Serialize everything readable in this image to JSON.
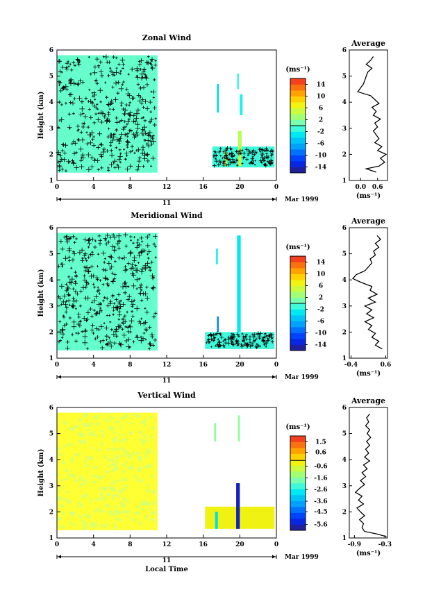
{
  "panels": [
    {
      "title": "Zonal Wind",
      "ylabel": "Height (km)",
      "y_ticks": [
        "1",
        "2",
        "3",
        "4",
        "5",
        "6"
      ],
      "x_ticks": [
        "0",
        "4",
        "8",
        "12",
        "16",
        "20",
        "0"
      ],
      "day_label": "11",
      "month_label": "Mar 1999",
      "colorbar": {
        "unit": "(ms⁻¹)",
        "ticks": [
          "14",
          "10",
          "6",
          "2",
          "-2",
          "-6",
          "-10",
          "-14"
        ],
        "range": [
          -16,
          16
        ]
      },
      "background_color": "#66ffcc",
      "average": {
        "title": "Average",
        "ylabel": "",
        "x_ticks": [
          "0.0",
          "0.6"
        ],
        "xlim": [
          -0.4,
          0.95
        ],
        "xlabel": "(ms⁻¹)",
        "heights": [
          1.32,
          1.45,
          1.55,
          1.7,
          1.85,
          2.0,
          2.15,
          2.3,
          2.45,
          2.6,
          2.75,
          2.9,
          3.05,
          3.2,
          3.35,
          3.5,
          3.65,
          3.8,
          3.95,
          4.1,
          4.25,
          4.4,
          4.55,
          4.7,
          4.85,
          5.0,
          5.15,
          5.3,
          5.45,
          5.6,
          5.75
        ],
        "values": [
          0.55,
          0.2,
          0.65,
          0.85,
          0.7,
          0.9,
          0.6,
          0.75,
          0.5,
          0.65,
          0.55,
          0.45,
          0.6,
          0.5,
          0.7,
          0.45,
          0.55,
          0.4,
          0.65,
          0.5,
          0.35,
          -0.1,
          0.0,
          0.1,
          0.15,
          0.2,
          0.25,
          0.4,
          0.2,
          0.35,
          0.45
        ]
      }
    },
    {
      "title": "Meridional Wind",
      "ylabel": "Height (km)",
      "y_ticks": [
        "1",
        "2",
        "3",
        "4",
        "5",
        "6"
      ],
      "x_ticks": [
        "0",
        "4",
        "8",
        "12",
        "16",
        "20",
        "0"
      ],
      "day_label": "11",
      "month_label": "Mar 1999",
      "colorbar": {
        "unit": "(ms⁻¹)",
        "ticks": [
          "14",
          "10",
          "6",
          "2",
          "-2",
          "-6",
          "-10",
          "-14"
        ],
        "range": [
          -16,
          16
        ]
      },
      "background_color": "#66ffcc",
      "average": {
        "title": "Average",
        "ylabel": "",
        "x_ticks": [
          "-0.4",
          "0.6"
        ],
        "xlim": [
          -0.45,
          0.65
        ],
        "xlabel": "(ms⁻¹)",
        "heights": [
          1.35,
          1.5,
          1.65,
          1.8,
          1.95,
          2.1,
          2.25,
          2.4,
          2.55,
          2.7,
          2.85,
          3.0,
          3.15,
          3.3,
          3.45,
          3.6,
          3.75,
          3.9,
          4.05,
          4.2,
          4.35,
          4.5,
          4.65,
          4.8,
          4.95,
          5.1,
          5.25,
          5.4,
          5.55,
          5.7
        ],
        "values": [
          0.5,
          0.3,
          0.4,
          0.2,
          0.3,
          0.1,
          0.2,
          0.0,
          0.25,
          0.05,
          0.2,
          0.0,
          0.3,
          0.1,
          0.35,
          0.15,
          0.2,
          -0.1,
          -0.35,
          -0.25,
          0.0,
          0.1,
          0.2,
          0.15,
          0.3,
          0.25,
          0.4,
          0.3,
          0.45,
          0.35
        ]
      }
    },
    {
      "title": "Vertical Wind",
      "ylabel": "Height (km)",
      "y_ticks": [
        "1",
        "2",
        "3",
        "4",
        "5",
        "6"
      ],
      "x_ticks": [
        "0",
        "4",
        "8",
        "12",
        "16",
        "20",
        "0"
      ],
      "day_label": "11",
      "month_label": "Mar 1999",
      "colorbar": {
        "unit": "(ms⁻¹)",
        "ticks": [
          "1.5",
          "0.6",
          "-0.6",
          "-1.6",
          "-2.6",
          "-3.6",
          "-4.5",
          "-5.6"
        ],
        "range": [
          -6.1,
          2.0
        ]
      },
      "background_color": "#ffff33",
      "average": {
        "title": "Average",
        "ylabel": "",
        "x_ticks": [
          "-0.9",
          "-0.3"
        ],
        "xlim": [
          -1.0,
          -0.25
        ],
        "xlabel": "(ms⁻¹)",
        "heights": [
          1.05,
          1.15,
          1.25,
          1.4,
          1.55,
          1.7,
          1.85,
          2.0,
          2.15,
          2.3,
          2.45,
          2.6,
          2.75,
          2.9,
          3.05,
          3.2,
          3.35,
          3.5,
          3.65,
          3.8,
          3.95,
          4.1,
          4.25,
          4.4,
          4.55,
          4.7,
          4.85,
          5.0,
          5.15,
          5.3,
          5.45,
          5.6,
          5.75
        ],
        "values": [
          -0.27,
          -0.45,
          -0.7,
          -0.75,
          -0.72,
          -0.8,
          -0.7,
          -0.78,
          -0.85,
          -0.72,
          -0.82,
          -0.75,
          -0.88,
          -0.8,
          -0.7,
          -0.78,
          -0.68,
          -0.75,
          -0.65,
          -0.72,
          -0.6,
          -0.7,
          -0.62,
          -0.68,
          -0.6,
          -0.66,
          -0.58,
          -0.65,
          -0.6,
          -0.68,
          -0.62,
          -0.66,
          -0.6
        ]
      }
    }
  ],
  "xlabel": "Local Time",
  "chart_data": [
    {
      "type": "heatmap",
      "title": "Zonal Wind",
      "xlabel": "",
      "ylabel": "Height (km)",
      "x_unit": "local time (h), 11 Mar 1999",
      "xlim": [
        0,
        24
      ],
      "ylim": [
        1,
        6
      ],
      "colorbar_unit": "(ms⁻¹)",
      "colorbar_range": [
        -16,
        16
      ],
      "blocks": [
        {
          "x": [
            0,
            11
          ],
          "y": [
            1.3,
            5.8
          ],
          "value": -1
        },
        {
          "x": [
            17,
            23.8
          ],
          "y": [
            1.5,
            2.3
          ],
          "value": -1
        },
        {
          "x": [
            18.3,
            18.6
          ],
          "y": [
            1.55,
            2.1
          ],
          "value": 5
        },
        {
          "x": [
            19.8,
            20.2
          ],
          "y": [
            1.55,
            2.9
          ],
          "value": 4
        },
        {
          "x": [
            17.5,
            17.7
          ],
          "y": [
            3.6,
            4.7
          ],
          "value": -4
        },
        {
          "x": [
            19.7,
            19.9
          ],
          "y": [
            4.5,
            5.1
          ],
          "value": -1
        },
        {
          "x": [
            20.0,
            20.3
          ],
          "y": [
            3.5,
            4.3
          ],
          "value": -2
        }
      ]
    },
    {
      "type": "heatmap",
      "title": "Meridional Wind",
      "xlabel": "",
      "ylabel": "Height (km)",
      "x_unit": "local time (h), 11 Mar 1999",
      "xlim": [
        0,
        24
      ],
      "ylim": [
        1,
        6
      ],
      "colorbar_unit": "(ms⁻¹)",
      "colorbar_range": [
        -16,
        16
      ],
      "blocks": [
        {
          "x": [
            0,
            11
          ],
          "y": [
            1.3,
            5.8
          ],
          "value": -1
        },
        {
          "x": [
            16.2,
            23.8
          ],
          "y": [
            1.35,
            2.0
          ],
          "value": -1
        },
        {
          "x": [
            19.7,
            20.1
          ],
          "y": [
            2.0,
            5.7
          ],
          "value": -3
        },
        {
          "x": [
            17.5,
            17.7
          ],
          "y": [
            2.0,
            2.6
          ],
          "value": -8
        },
        {
          "x": [
            17.4,
            17.6
          ],
          "y": [
            4.6,
            5.2
          ],
          "value": -2
        }
      ]
    },
    {
      "type": "heatmap",
      "title": "Vertical Wind",
      "xlabel": "Local Time",
      "ylabel": "Height (km)",
      "x_unit": "local time (h), 11 Mar 1999",
      "xlim": [
        0,
        24
      ],
      "ylim": [
        1,
        6
      ],
      "colorbar_unit": "(ms⁻¹)",
      "colorbar_range": [
        -6.1,
        2.0
      ],
      "blocks": [
        {
          "x": [
            0,
            11
          ],
          "y": [
            1.3,
            5.8
          ],
          "value": -0.3
        },
        {
          "x": [
            16.2,
            23.8
          ],
          "y": [
            1.35,
            2.2
          ],
          "value": -0.3
        },
        {
          "x": [
            19.6,
            20.0
          ],
          "y": [
            1.35,
            3.1
          ],
          "value": -5.6
        },
        {
          "x": [
            17.3,
            17.6
          ],
          "y": [
            1.35,
            2.0
          ],
          "value": -3.0
        },
        {
          "x": [
            17.2,
            17.4
          ],
          "y": [
            4.7,
            5.4
          ],
          "value": -1.6
        },
        {
          "x": [
            19.8,
            20.0
          ],
          "y": [
            4.7,
            5.7
          ],
          "value": -1.6
        }
      ]
    }
  ]
}
